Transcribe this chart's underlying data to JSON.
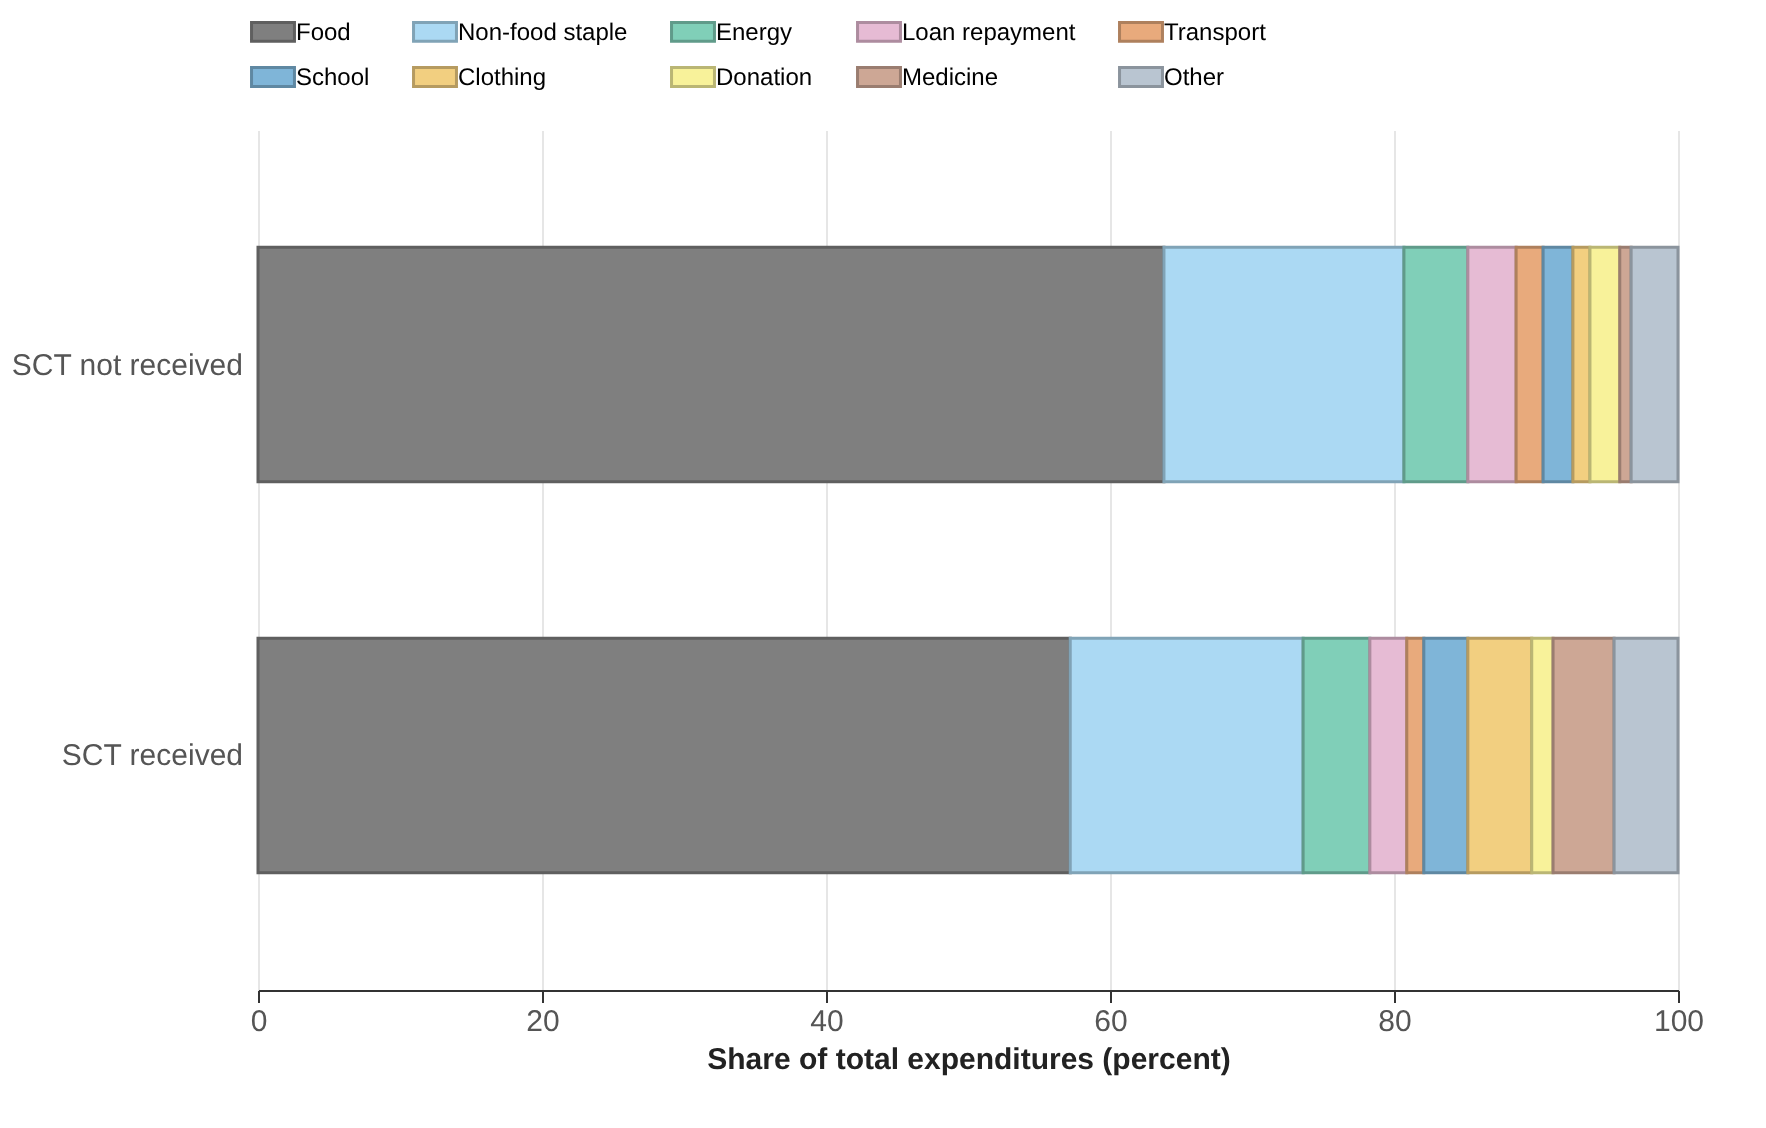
{
  "chart_data": {
    "type": "bar",
    "orientation": "horizontal",
    "stacked": true,
    "categories": [
      "SCT not received",
      "SCT received"
    ],
    "xlabel": "Share of total expenditures (percent)",
    "xlim": [
      0,
      100
    ],
    "xticks": [
      0,
      20,
      40,
      60,
      80,
      100
    ],
    "grid": "x",
    "legend": "top",
    "series": [
      {
        "name": "Food",
        "color": "#7f7f7f",
        "values": [
          63.8,
          57.2
        ]
      },
      {
        "name": "Non-food staple",
        "color": "#abd9f3",
        "values": [
          16.9,
          16.4
        ]
      },
      {
        "name": "Energy",
        "color": "#80cfb8",
        "values": [
          4.5,
          4.7
        ]
      },
      {
        "name": "Loan repayment",
        "color": "#e6bbd4",
        "values": [
          3.4,
          2.6
        ]
      },
      {
        "name": "Transport",
        "color": "#e8aa7c",
        "values": [
          1.9,
          1.2
        ]
      },
      {
        "name": "School",
        "color": "#7fb5d8",
        "values": [
          2.1,
          3.1
        ]
      },
      {
        "name": "Clothing",
        "color": "#f2cf80",
        "values": [
          1.2,
          4.5
        ]
      },
      {
        "name": "Donation",
        "color": "#f8f29a",
        "values": [
          2.1,
          1.5
        ]
      },
      {
        "name": "Medicine",
        "color": "#cda795",
        "values": [
          0.8,
          4.3
        ]
      },
      {
        "name": "Other",
        "color": "#b9c5d1",
        "values": [
          3.3,
          4.5
        ]
      }
    ]
  }
}
